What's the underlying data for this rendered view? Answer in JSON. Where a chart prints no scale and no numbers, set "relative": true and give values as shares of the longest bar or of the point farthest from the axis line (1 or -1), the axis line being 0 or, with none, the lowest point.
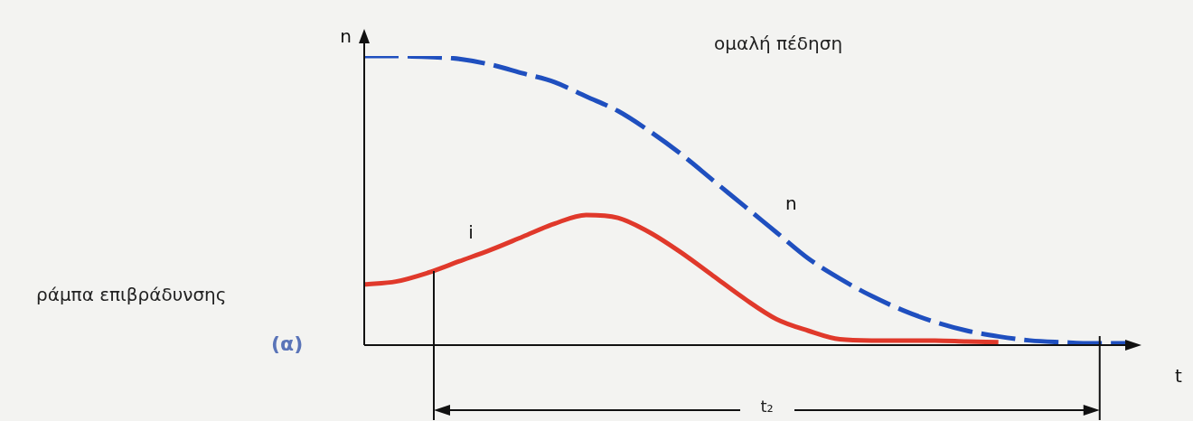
{
  "chart_data": {
    "type": "line",
    "relative": true,
    "xlabel": "t",
    "ylabel": "n",
    "categories": [
      null,
      null,
      null,
      null,
      null,
      null,
      null,
      null,
      null,
      null,
      null,
      null,
      null,
      null,
      null,
      null,
      null,
      null,
      null,
      null,
      null,
      null,
      null,
      null,
      null
    ],
    "series": [
      {
        "name": "n",
        "color": "#1f4fbf",
        "line_style": "dashed",
        "values": [
          1.0,
          1.0,
          0.997,
          0.99,
          0.97,
          0.94,
          0.91,
          0.86,
          0.81,
          0.74,
          0.66,
          0.57,
          0.48,
          0.39,
          0.3,
          0.23,
          0.17,
          0.12,
          0.08,
          0.05,
          0.03,
          0.016,
          0.01,
          0.006,
          0.006
        ]
      },
      {
        "name": "i",
        "color": "#e0392b",
        "line_style": "solid",
        "values": [
          0.21,
          0.22,
          0.25,
          0.29,
          0.33,
          0.375,
          0.42,
          0.45,
          0.44,
          0.39,
          0.32,
          0.24,
          0.16,
          0.09,
          0.05,
          0.02,
          0.016,
          0.016,
          0.016,
          0.0125,
          0.01,
          null,
          null,
          null,
          null
        ]
      }
    ],
    "annotations": [
      "ομαλή πέδηση",
      "ράμπα επιβράδυνσης",
      "(α)",
      "t₂"
    ],
    "grid": false,
    "legend": false,
    "marker": "none"
  }
}
